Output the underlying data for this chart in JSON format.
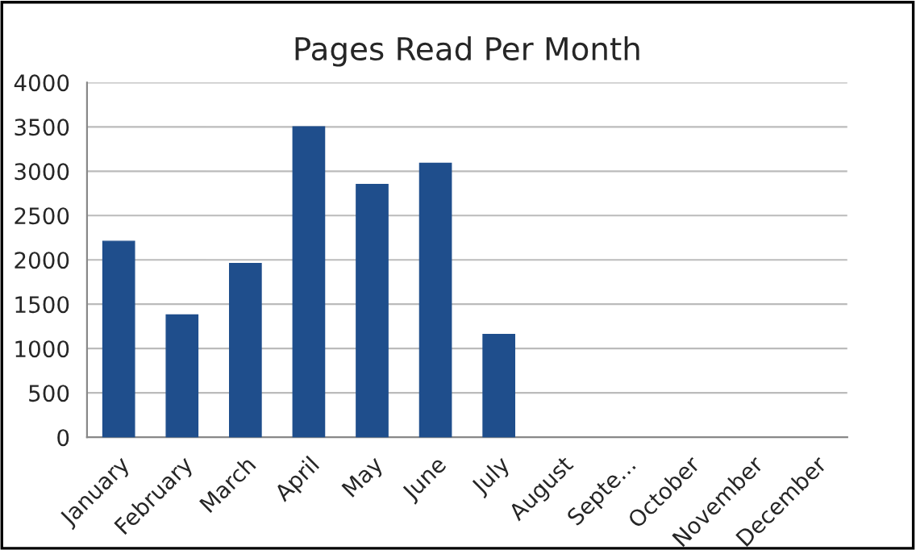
{
  "chart_data": {
    "type": "bar",
    "title": "Pages Read Per Month",
    "categories": [
      "January",
      "February",
      "March",
      "April",
      "May",
      "June",
      "July",
      "August",
      "Septe...",
      "October",
      "November",
      "December"
    ],
    "values": [
      2210,
      1380,
      1960,
      3500,
      2850,
      3090,
      1160,
      null,
      null,
      null,
      null,
      null
    ],
    "color": "#1f4e8c",
    "ylim": [
      0,
      4000
    ],
    "yticks": [
      0,
      500,
      1000,
      1500,
      2000,
      2500,
      3000,
      3500,
      4000
    ],
    "grid": "y",
    "legend": false
  }
}
